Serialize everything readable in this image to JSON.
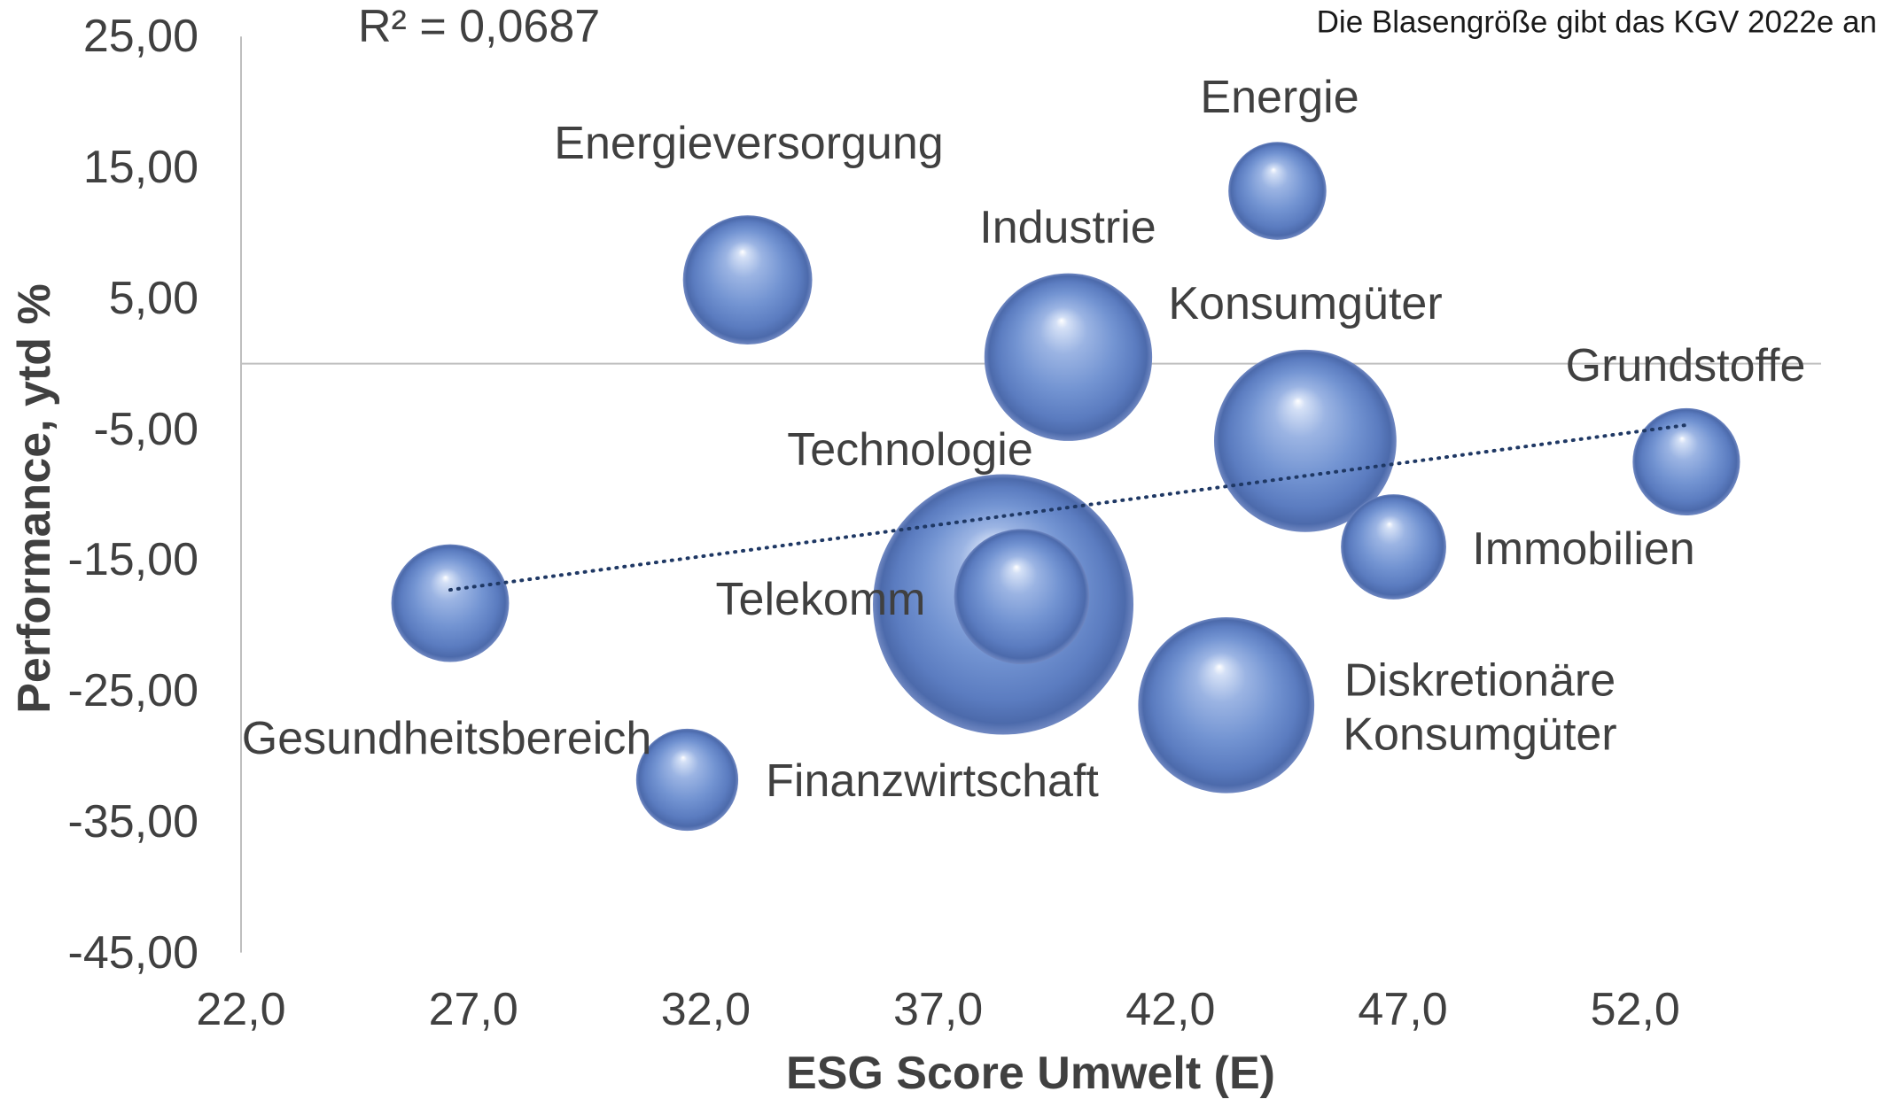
{
  "chart_data": {
    "type": "scatter",
    "title": "",
    "note": "Die Blasengröße gibt das KGV 2022e an",
    "xlabel": "ESG Score Umwelt (E)",
    "ylabel": "Performance, ytd %",
    "xlim": [
      22,
      56
    ],
    "ylim": [
      -45,
      25
    ],
    "grid": false,
    "legend": "none",
    "x_ticks": [
      {
        "value": 22,
        "label": "22,0"
      },
      {
        "value": 27,
        "label": "27,0"
      },
      {
        "value": 32,
        "label": "32,0"
      },
      {
        "value": 37,
        "label": "37,0"
      },
      {
        "value": 42,
        "label": "42,0"
      },
      {
        "value": 47,
        "label": "47,0"
      },
      {
        "value": 52,
        "label": "52,0"
      }
    ],
    "y_ticks": [
      {
        "value": 25,
        "label": "25,00"
      },
      {
        "value": 15,
        "label": "15,00"
      },
      {
        "value": 5,
        "label": "5,00"
      },
      {
        "value": -5,
        "label": "-5,00"
      },
      {
        "value": -15,
        "label": "-15,00"
      },
      {
        "value": -25,
        "label": "-25,00"
      },
      {
        "value": -35,
        "label": "-35,00"
      },
      {
        "value": -45,
        "label": "-45,00"
      }
    ],
    "trendline": {
      "type": "linear",
      "style": "dotted",
      "label": "R² = 0,0687"
    },
    "points": [
      {
        "name": "Energieversorgung",
        "x": 32.9,
        "y": 6.4,
        "size": 12.4
      },
      {
        "name": "Energie",
        "x": 44.3,
        "y": 13.2,
        "size": 9.4
      },
      {
        "name": "Industrie",
        "x": 39.8,
        "y": 0.5,
        "size": 16.1
      },
      {
        "name": "Konsumgüter",
        "x": 44.9,
        "y": -5.9,
        "size": 17.5
      },
      {
        "name": "Grundstoffe",
        "x": 53.1,
        "y": -7.5,
        "size": 10.3
      },
      {
        "name": "Technologie",
        "x": 38.4,
        "y": -18.4,
        "size": 25.0
      },
      {
        "name": "Telekomm",
        "x": 38.8,
        "y": -17.8,
        "size": 13.0
      },
      {
        "name": "Immobilien",
        "x": 46.8,
        "y": -14.0,
        "size": 10.1
      },
      {
        "name": "Gesundheitsbereich",
        "x": 26.5,
        "y": -18.3,
        "size": 11.3
      },
      {
        "name": "Diskretionäre Konsumgüter",
        "x": 43.2,
        "y": -26.1,
        "size": 16.9
      },
      {
        "name": "Finanzwirtschaft",
        "x": 31.6,
        "y": -31.8,
        "size": 9.8
      }
    ],
    "colors": {
      "bubble": "#7394d2",
      "bubble_highlight": "#ffffff",
      "bubble_shadow": "#4c6aab",
      "trendline": "#1f3864",
      "axis": "#bfbfbf",
      "text": "#404040"
    }
  }
}
